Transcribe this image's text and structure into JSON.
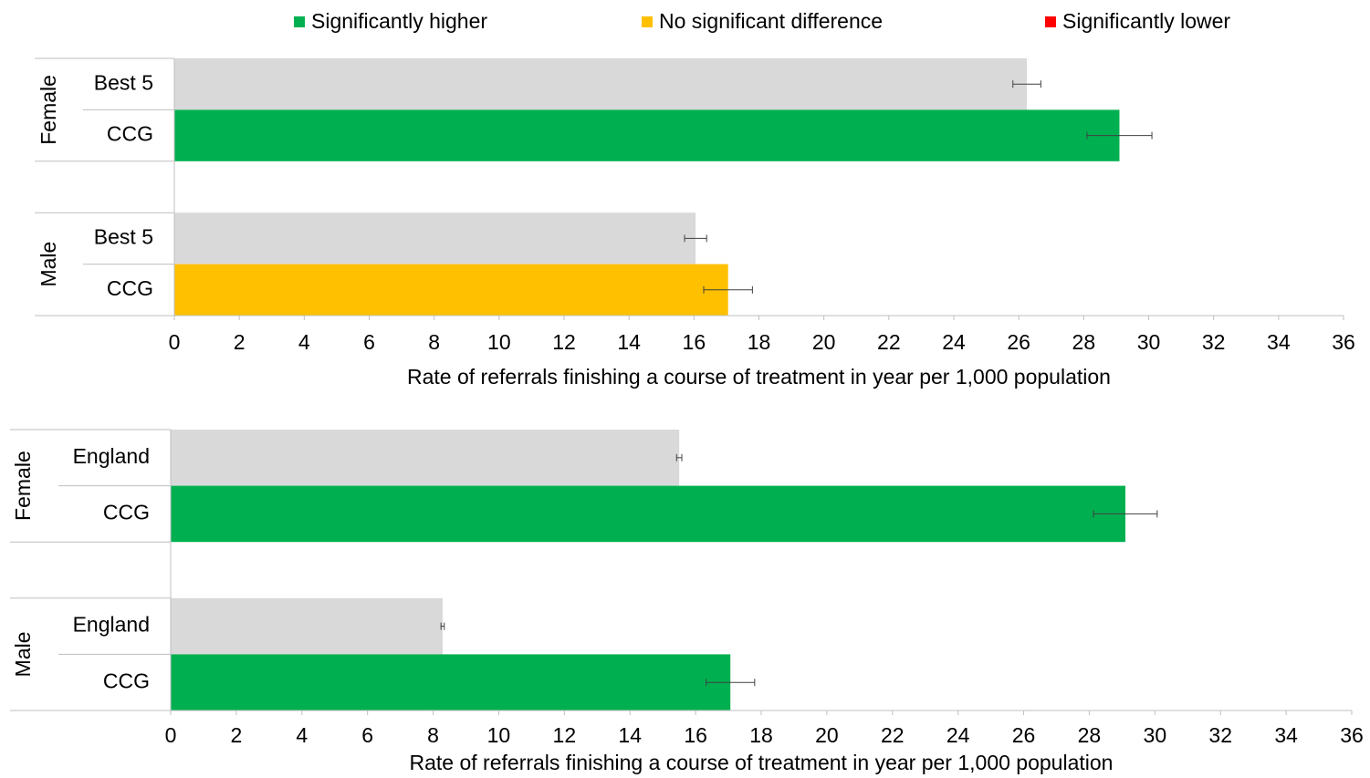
{
  "legend": [
    {
      "name": "Significantly higher",
      "color": "#00b050"
    },
    {
      "name": "No significant difference",
      "color": "#ffc000"
    },
    {
      "name": "Significantly lower",
      "color": "#ff0000"
    }
  ],
  "chart_data": [
    {
      "type": "bar",
      "orientation": "horizontal",
      "x_label": "Rate of referrals finishing a course of treatment in year per 1,000 population",
      "xlim": [
        0,
        36
      ],
      "xticks": [
        0,
        2,
        4,
        6,
        8,
        10,
        12,
        14,
        16,
        18,
        20,
        22,
        24,
        26,
        28,
        30,
        32,
        34,
        36
      ],
      "groups": [
        {
          "name": "Female",
          "categories": [
            "Best 5",
            "CCG"
          ],
          "values": [
            26.25,
            29.1
          ],
          "errors": [
            0.43,
            1.0
          ],
          "colors": [
            "#d9d9d9",
            "#00b050"
          ]
        },
        {
          "name": "Male",
          "categories": [
            "Best 5",
            "CCG"
          ],
          "values": [
            16.05,
            17.05
          ],
          "errors": [
            0.34,
            0.75
          ],
          "colors": [
            "#d9d9d9",
            "#ffc000"
          ]
        }
      ]
    },
    {
      "type": "bar",
      "orientation": "horizontal",
      "x_label": "Rate of referrals finishing a course of treatment in year per 1,000 population",
      "xlim": [
        0,
        36
      ],
      "xticks": [
        0,
        2,
        4,
        6,
        8,
        10,
        12,
        14,
        16,
        18,
        20,
        22,
        24,
        26,
        28,
        30,
        32,
        34,
        36
      ],
      "groups": [
        {
          "name": "Female",
          "categories": [
            "England",
            "CCG"
          ],
          "values": [
            15.5,
            29.1
          ],
          "errors": [
            0.08,
            0.97
          ],
          "colors": [
            "#d9d9d9",
            "#00b050"
          ]
        },
        {
          "name": "Male",
          "categories": [
            "England",
            "CCG"
          ],
          "values": [
            8.29,
            17.06
          ],
          "errors": [
            0.05,
            0.74
          ],
          "colors": [
            "#d9d9d9",
            "#00b050"
          ]
        }
      ]
    }
  ]
}
